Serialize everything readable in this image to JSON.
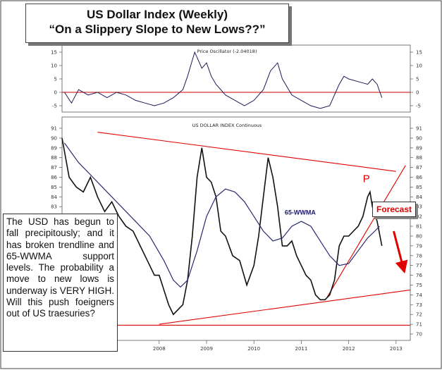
{
  "title": {
    "line1": "US Dollar Index (Weekly)",
    "line2": "“On a Slippery Slope to New Lows??”"
  },
  "note_text": "The USD has begun to fall precipitously; and it has broken trendline and 65-WWMA support levels. The probability a move to new lows is underway is VERY HIGH. Will this push foeigners out of US traesuries?",
  "forecast_label": "Forecast",
  "colors": {
    "price": "#111111",
    "moving_average": "#2a2a70",
    "oscillator": "#1a1a5a",
    "trendlines": "#e00000",
    "zero_line": "#cc0000",
    "frame": "#444444"
  },
  "chart_data": [
    {
      "panel": "oscillator",
      "type": "line",
      "title": "Price Oscillator (-2.04018)",
      "y_ticks": [
        15,
        10,
        5,
        0,
        -5
      ],
      "ylim": [
        -7,
        17
      ],
      "zero_line": 0,
      "series": [
        {
          "kind": "oscillator",
          "x": [
            2006.0,
            2006.15,
            2006.3,
            2006.5,
            2006.7,
            2006.9,
            2007.1,
            2007.3,
            2007.5,
            2007.7,
            2007.9,
            2008.1,
            2008.3,
            2008.5,
            2008.6,
            2008.7,
            2008.75,
            2008.8,
            2008.9,
            2009.0,
            2009.1,
            2009.2,
            2009.4,
            2009.6,
            2009.8,
            2010.0,
            2010.2,
            2010.35,
            2010.5,
            2010.6,
            2010.8,
            2011.0,
            2011.2,
            2011.4,
            2011.6,
            2011.8,
            2011.9,
            2012.0,
            2012.2,
            2012.4,
            2012.5,
            2012.6,
            2012.7
          ],
          "y": [
            0,
            -4,
            1,
            -1,
            0,
            -2,
            0,
            -1,
            -3,
            -4,
            -5,
            -4,
            -2,
            1,
            6,
            12,
            15,
            13,
            9,
            11,
            6,
            3,
            -1,
            -3,
            -5,
            -3,
            1,
            8,
            11,
            5,
            -1,
            -3,
            -5,
            -6,
            -5,
            3,
            6,
            5,
            4,
            3,
            5,
            3,
            -2
          ]
        }
      ]
    },
    {
      "panel": "price",
      "type": "line",
      "title": "US DOLLAR INDEX Continuous",
      "y_ticks": [
        91,
        90,
        89,
        88,
        87,
        86,
        85,
        84,
        83,
        82,
        81,
        80,
        79,
        78,
        77,
        76,
        75,
        74,
        73,
        72,
        71,
        70
      ],
      "ylim": [
        70,
        91
      ],
      "x_ticks": [
        "2008",
        "2009",
        "2010",
        "2011",
        "2012",
        "2013"
      ],
      "x_tick_values": [
        2008,
        2009,
        2010,
        2011,
        2012,
        2013
      ],
      "xlim": [
        2005.95,
        2013.3
      ],
      "series": [
        {
          "name": "",
          "kind": "price",
          "x": [
            2005.95,
            2006.1,
            2006.25,
            2006.4,
            2006.55,
            2006.7,
            2006.85,
            2007.0,
            2007.15,
            2007.3,
            2007.45,
            2007.6,
            2007.75,
            2007.9,
            2008.0,
            2008.1,
            2008.2,
            2008.3,
            2008.4,
            2008.5,
            2008.6,
            2008.7,
            2008.8,
            2008.9,
            2009.0,
            2009.1,
            2009.2,
            2009.3,
            2009.4,
            2009.55,
            2009.7,
            2009.85,
            2010.0,
            2010.1,
            2010.2,
            2010.3,
            2010.4,
            2010.5,
            2010.6,
            2010.7,
            2010.8,
            2010.9,
            2011.0,
            2011.1,
            2011.2,
            2011.3,
            2011.4,
            2011.5,
            2011.6,
            2011.7,
            2011.8,
            2011.9,
            2012.0,
            2012.1,
            2012.2,
            2012.3,
            2012.4,
            2012.45,
            2012.5,
            2012.6,
            2012.7
          ],
          "y": [
            90,
            86,
            85,
            84.5,
            86,
            84,
            82.5,
            83.5,
            82,
            81,
            80.5,
            79,
            77.5,
            76,
            76,
            74.5,
            73,
            72,
            72.5,
            73,
            75.5,
            80,
            86,
            89,
            86,
            85.5,
            84,
            80.5,
            80,
            78,
            77.5,
            75,
            77,
            80,
            84,
            88,
            86,
            83,
            79,
            79,
            79.5,
            78,
            77,
            76,
            75.5,
            74,
            73.5,
            73.5,
            74,
            75.5,
            79,
            80,
            80,
            80.5,
            81,
            82,
            84,
            84.5,
            83,
            81.5,
            79
          ]
        },
        {
          "name": "65-WWMA",
          "kind": "moving_average",
          "x": [
            2006.0,
            2006.3,
            2006.6,
            2006.9,
            2007.2,
            2007.5,
            2007.8,
            2008.1,
            2008.3,
            2008.45,
            2008.6,
            2008.8,
            2009.0,
            2009.2,
            2009.4,
            2009.6,
            2009.8,
            2010.0,
            2010.2,
            2010.4,
            2010.6,
            2010.8,
            2011.0,
            2011.2,
            2011.4,
            2011.6,
            2011.8,
            2012.0,
            2012.2,
            2012.4,
            2012.55,
            2012.65
          ],
          "y": [
            89.5,
            87.5,
            86,
            84.5,
            83,
            81.5,
            80,
            77.5,
            75.5,
            74.8,
            75.5,
            78.5,
            82,
            84,
            84.8,
            84.5,
            83.5,
            82,
            80.5,
            79.5,
            79.8,
            81,
            81.5,
            81,
            79.5,
            78,
            77,
            77.2,
            78.5,
            79.8,
            80.5,
            81
          ]
        }
      ],
      "annotations": [
        {
          "text": "65-WWMA",
          "x": 2010.65,
          "y": 82.2
        },
        {
          "text": "P",
          "x": 2012.3,
          "y": 85.5
        }
      ],
      "trendlines": [
        {
          "name": "upper descending",
          "x": [
            2006.7,
            2013.0
          ],
          "y": [
            90.6,
            86.6
          ]
        },
        {
          "name": "lower ascending",
          "x": [
            2008.0,
            2013.3
          ],
          "y": [
            71.0,
            74.5
          ]
        },
        {
          "name": "support",
          "x": [
            2006.0,
            2013.3
          ],
          "y": [
            70.9,
            70.9
          ]
        },
        {
          "name": "steep uptrend",
          "x": [
            2011.55,
            2013.2
          ],
          "y": [
            73.8,
            87.2
          ]
        }
      ],
      "forecast_arrow": {
        "x": [
          2012.95,
          2013.15
        ],
        "y": [
          80.5,
          76.8
        ]
      }
    }
  ]
}
